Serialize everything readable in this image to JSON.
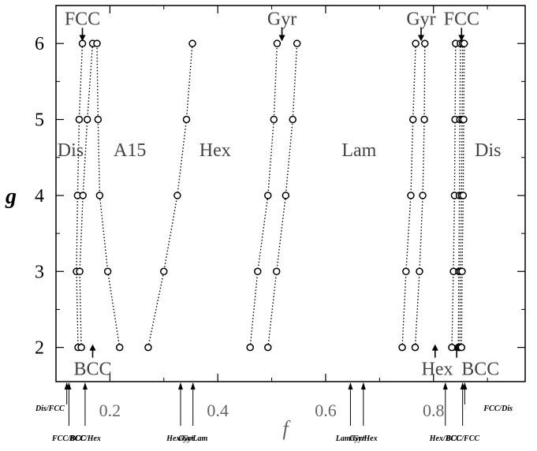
{
  "chart_data": {
    "type": "scatter",
    "xlabel": "f",
    "ylabel": "g",
    "xlim": [
      0.1,
      0.97
    ],
    "ylim": [
      1.55,
      6.5
    ],
    "x_ticks": [
      {
        "value": 0.2,
        "label": "0.2"
      },
      {
        "value": 0.4,
        "label": "0.4"
      },
      {
        "value": 0.6,
        "label": "0.6"
      },
      {
        "value": 0.8,
        "label": "0.8"
      }
    ],
    "y_ticks": [
      {
        "value": 2,
        "label": "2"
      },
      {
        "value": 3,
        "label": "3"
      },
      {
        "value": 4,
        "label": "4"
      },
      {
        "value": 5,
        "label": "5"
      },
      {
        "value": 6,
        "label": "6"
      }
    ],
    "series": [
      {
        "points": [
          [
            0.141,
            2
          ],
          [
            0.138,
            3
          ],
          [
            0.14,
            4
          ],
          [
            0.143,
            5
          ],
          [
            0.149,
            6
          ]
        ]
      },
      {
        "points": [
          [
            0.147,
            2
          ],
          [
            0.144,
            3
          ],
          [
            0.15,
            4
          ],
          [
            0.158,
            5
          ],
          [
            0.168,
            6
          ]
        ]
      },
      {
        "points": [
          [
            0.218,
            2
          ],
          [
            0.196,
            3
          ],
          [
            0.181,
            4
          ],
          [
            0.178,
            5
          ],
          [
            0.176,
            6
          ]
        ]
      },
      {
        "points": [
          [
            0.271,
            2
          ],
          [
            0.3,
            3
          ],
          [
            0.325,
            4
          ],
          [
            0.342,
            5
          ],
          [
            0.353,
            6
          ]
        ]
      },
      {
        "points": [
          [
            0.46,
            2
          ],
          [
            0.474,
            3
          ],
          [
            0.493,
            4
          ],
          [
            0.504,
            5
          ],
          [
            0.51,
            6
          ]
        ]
      },
      {
        "points": [
          [
            0.493,
            2
          ],
          [
            0.509,
            3
          ],
          [
            0.526,
            4
          ],
          [
            0.539,
            5
          ],
          [
            0.547,
            6
          ]
        ]
      },
      {
        "points": [
          [
            0.742,
            2
          ],
          [
            0.749,
            3
          ],
          [
            0.758,
            4
          ],
          [
            0.762,
            5
          ],
          [
            0.767,
            6
          ]
        ]
      },
      {
        "points": [
          [
            0.766,
            2
          ],
          [
            0.774,
            3
          ],
          [
            0.78,
            4
          ],
          [
            0.783,
            5
          ],
          [
            0.784,
            6
          ]
        ]
      },
      {
        "points": [
          [
            0.834,
            2
          ],
          [
            0.837,
            3
          ],
          [
            0.839,
            4
          ],
          [
            0.84,
            5
          ],
          [
            0.841,
            6
          ]
        ]
      },
      {
        "points": [
          [
            0.846,
            2
          ],
          [
            0.847,
            3
          ],
          [
            0.848,
            4
          ],
          [
            0.849,
            5
          ],
          [
            0.85,
            6
          ]
        ]
      },
      {
        "points": [
          [
            0.849,
            2
          ],
          [
            0.85,
            3
          ],
          [
            0.852,
            4
          ],
          [
            0.853,
            5
          ],
          [
            0.854,
            6
          ]
        ]
      },
      {
        "points": [
          [
            0.852,
            2
          ],
          [
            0.853,
            3
          ],
          [
            0.855,
            4
          ],
          [
            0.856,
            5
          ],
          [
            0.857,
            6
          ]
        ]
      }
    ],
    "phase_labels": [
      {
        "text": "Dis",
        "x": 0.127,
        "y": 4.59
      },
      {
        "text": "A15",
        "x": 0.237,
        "y": 4.59
      },
      {
        "text": "Hex",
        "x": 0.395,
        "y": 4.59
      },
      {
        "text": "Lam",
        "x": 0.662,
        "y": 4.59
      },
      {
        "text": "Dis",
        "x": 0.901,
        "y": 4.59
      }
    ],
    "arrow_labels": [
      {
        "text": "FCC",
        "x": 0.149,
        "y": 6.33,
        "arrow_x": 0.149,
        "direction": "down"
      },
      {
        "text": "Gyr",
        "x": 0.519,
        "y": 6.33,
        "arrow_x": 0.519,
        "direction": "down"
      },
      {
        "text": "Gyr",
        "x": 0.777,
        "y": 6.33,
        "arrow_x": 0.777,
        "direction": "down"
      },
      {
        "text": "FCC",
        "x": 0.852,
        "y": 6.33,
        "arrow_x": 0.852,
        "direction": "down"
      },
      {
        "text": "BCC",
        "x": 0.168,
        "y": 1.72,
        "arrow_x": 0.168,
        "direction": "up"
      },
      {
        "text": "Hex",
        "x": 0.807,
        "y": 1.72,
        "arrow_x": 0.803,
        "direction": "up"
      },
      {
        "text": "BCC",
        "x": 0.887,
        "y": 1.72,
        "arrow_x": 0.843,
        "direction": "up"
      }
    ],
    "transitions": [
      {
        "label": "Dis/FCC",
        "f": 0.12,
        "position": "upper"
      },
      {
        "label": "FCC/BCC",
        "f": 0.124,
        "position": "lower"
      },
      {
        "label": "BCC/Hex",
        "f": 0.154,
        "position": "lower"
      },
      {
        "label": "Hex/Gyr",
        "f": 0.331,
        "position": "lower"
      },
      {
        "label": "Gyr/Lam",
        "f": 0.354,
        "position": "lower"
      },
      {
        "label": "Lam/Gyr",
        "f": 0.646,
        "position": "lower"
      },
      {
        "label": "Gyr/Hex",
        "f": 0.67,
        "position": "lower"
      },
      {
        "label": "Hex/BCC",
        "f": 0.822,
        "position": "lower"
      },
      {
        "label": "BCC/FCC",
        "f": 0.854,
        "position": "lower"
      },
      {
        "label": "FCC/Dis",
        "f": 0.858,
        "position": "upper"
      }
    ]
  }
}
